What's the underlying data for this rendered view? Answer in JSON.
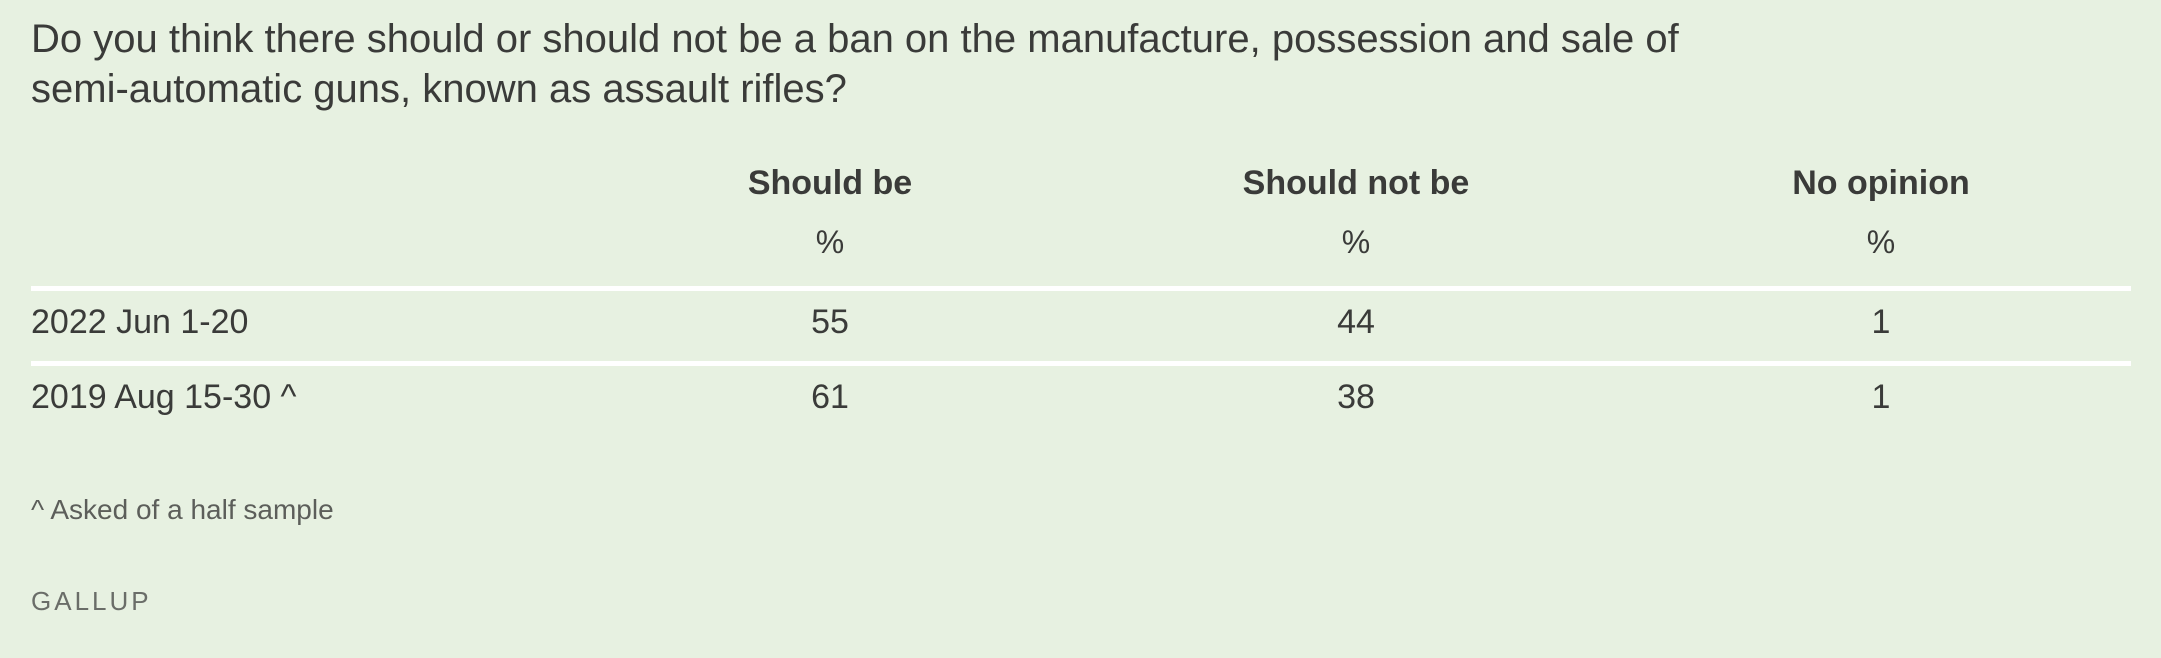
{
  "question": "Do you think there should or should not be a ban on the manufacture, possession and sale of semi-automatic guns, known as assault rifles?",
  "footnote": "^ Asked of a half sample",
  "brand": "GALLUP",
  "colors": {
    "background": "#e7f1e1",
    "rule": "#ffffff",
    "text": "#3a3b39"
  },
  "chart_data": {
    "type": "table",
    "columns": [
      "Should be",
      "Should not be",
      "No opinion"
    ],
    "units": [
      "%",
      "%",
      "%"
    ],
    "rows": [
      {
        "label": "2022 Jun 1-20",
        "values": [
          "55",
          "44",
          "1"
        ]
      },
      {
        "label": "2019 Aug 15-30 ^",
        "values": [
          "61",
          "38",
          "1"
        ]
      }
    ]
  }
}
